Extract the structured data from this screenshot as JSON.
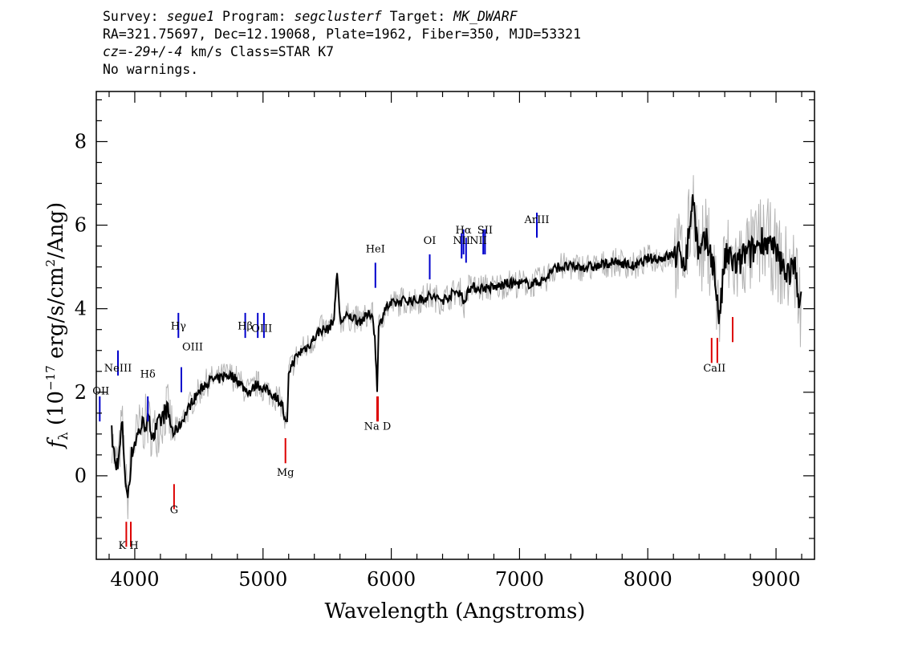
{
  "header": {
    "survey_label": "Survey:",
    "survey": "segue1",
    "program_label": "Program:",
    "program": "segclusterf",
    "target_label": "Target:",
    "target": "MK_DWARF",
    "line2": "RA=321.75697, Dec=12.19068, Plate=1962, Fiber=350, MJD=53321",
    "cz_label": "cz=",
    "cz_value": "-29+/-4",
    "cz_unit_class": "km/s Class=STAR K7",
    "warnings": "No warnings."
  },
  "chart_data": {
    "type": "line",
    "xlabel": "Wavelength (Angstroms)",
    "ylabel": "f_λ (10^-17 erg/s/cm^2/Ang)",
    "xlim": [
      3700,
      9300
    ],
    "ylim": [
      -2,
      9.2
    ],
    "x_ticks": [
      4000,
      5000,
      6000,
      7000,
      8000,
      9000
    ],
    "y_ticks": [
      0,
      2,
      4,
      6,
      8
    ],
    "series": [
      {
        "role": "smoothed flux",
        "color": "#000000",
        "x": [
          3820,
          3850,
          3880,
          3900,
          3920,
          3940,
          3960,
          3980,
          4000,
          4050,
          4100,
          4150,
          4200,
          4250,
          4300,
          4350,
          4400,
          4450,
          4500,
          4550,
          4600,
          4650,
          4700,
          4750,
          4800,
          4850,
          4900,
          4950,
          5000,
          5050,
          5100,
          5150,
          5170,
          5190,
          5200,
          5250,
          5300,
          5350,
          5400,
          5450,
          5500,
          5550,
          5580,
          5600,
          5650,
          5700,
          5750,
          5800,
          5850,
          5870,
          5890,
          5900,
          5950,
          6000,
          6100,
          6200,
          6300,
          6400,
          6500,
          6550,
          6560,
          6600,
          6700,
          6800,
          6900,
          7000,
          7100,
          7200,
          7250,
          7300,
          7400,
          7500,
          7600,
          7700,
          7800,
          7900,
          8000,
          8100,
          8200,
          8300,
          8350,
          8400,
          8450,
          8500,
          8540,
          8560,
          8600,
          8650,
          8700,
          8750,
          8800,
          8850,
          8900,
          8950,
          9000,
          9050,
          9100,
          9150,
          9200
        ],
        "y": [
          1.0,
          0.2,
          0.5,
          1.3,
          0.3,
          -0.6,
          0.0,
          0.6,
          0.8,
          1.2,
          1.3,
          1.0,
          1.3,
          1.6,
          1.0,
          1.2,
          1.5,
          1.8,
          2.0,
          2.2,
          2.3,
          2.3,
          2.4,
          2.4,
          2.3,
          2.1,
          2.0,
          2.2,
          2.1,
          2.0,
          1.9,
          1.7,
          1.3,
          1.2,
          2.5,
          2.8,
          3.0,
          3.1,
          3.3,
          3.5,
          3.5,
          3.7,
          4.9,
          3.7,
          3.8,
          3.8,
          3.7,
          3.8,
          3.9,
          3.4,
          2.1,
          3.5,
          4.0,
          4.1,
          4.2,
          4.2,
          4.3,
          4.2,
          4.4,
          4.4,
          4.0,
          4.5,
          4.5,
          4.5,
          4.6,
          4.6,
          4.6,
          4.7,
          4.9,
          5.0,
          5.0,
          5.0,
          5.0,
          5.1,
          5.1,
          5.0,
          5.2,
          5.2,
          5.3,
          5.2,
          6.7,
          5.2,
          5.6,
          5.3,
          4.3,
          3.7,
          5.2,
          5.2,
          5.0,
          5.3,
          5.3,
          5.5,
          5.7,
          5.5,
          5.3,
          5.0,
          4.9,
          4.9,
          4.0
        ]
      }
    ],
    "emission_lines": [
      {
        "label": "OII",
        "x": 3727,
        "y": 1.3
      },
      {
        "label": "NeIII",
        "x": 3869,
        "y": 2.4
      },
      {
        "label": "Hδ",
        "x": 4102,
        "y": 1.3
      },
      {
        "label": "Hγ",
        "x": 4340,
        "y": 3.3
      },
      {
        "label": "OIII",
        "x": 4363,
        "y": 2.0
      },
      {
        "label": "Hβ",
        "x": 4861,
        "y": 3.3
      },
      {
        "label": "OIII",
        "x": 4959,
        "y": 3.3
      },
      {
        "label": "OIII",
        "x": 5007,
        "y": 3.3
      },
      {
        "label": "HeI",
        "x": 5876,
        "y": 4.5
      },
      {
        "label": "OI",
        "x": 6300,
        "y": 4.7
      },
      {
        "label": "NII",
        "x": 6548,
        "y": 5.2
      },
      {
        "label": "Hα",
        "x": 6563,
        "y": 5.3
      },
      {
        "label": "NII",
        "x": 6583,
        "y": 5.1
      },
      {
        "label": "SII",
        "x": 6717,
        "y": 5.3
      },
      {
        "label": "SII",
        "x": 6731,
        "y": 5.3
      },
      {
        "label": "ArIII",
        "x": 7135,
        "y": 5.7
      }
    ],
    "absorption_lines": [
      {
        "label": "K",
        "x": 3934,
        "y": -1.1
      },
      {
        "label": "H",
        "x": 3969,
        "y": -1.1
      },
      {
        "label": "G",
        "x": 4306,
        "y": -0.2
      },
      {
        "label": "Mg",
        "x": 5175,
        "y": 0.9
      },
      {
        "label": "Na",
        "x": 5890,
        "y": 1.9
      },
      {
        "label": "D",
        "x": 5896,
        "y": 1.9
      },
      {
        "label": "CaII",
        "x": 8498,
        "y": 3.3
      },
      {
        "label": "CaII",
        "x": 8542,
        "y": 3.3
      },
      {
        "label": "CaII",
        "x": 8662,
        "y": 3.8
      }
    ],
    "line_annotations": {
      "emission": [
        "OII",
        "NeIII",
        "Hδ",
        "Hγ",
        "OIII",
        "Hβ",
        "OIII",
        "HeI",
        "OI",
        "NII",
        "Hα",
        "SII",
        "NII",
        "ArIII"
      ],
      "absorption": [
        "K",
        "H",
        "G",
        "Mg",
        "Na",
        "D",
        "CaII"
      ]
    },
    "colors": {
      "flux": "#000000",
      "raw_flux": "#b4b4b4",
      "emission": "#0000cc",
      "absorption": "#dd0000"
    }
  }
}
